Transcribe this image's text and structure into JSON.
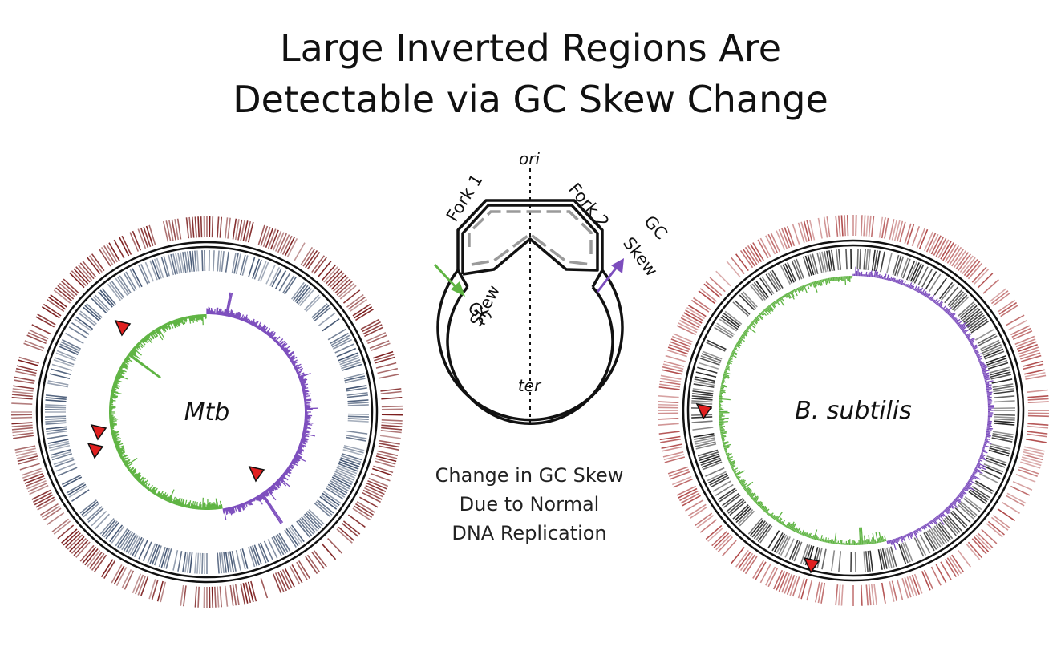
{
  "title": {
    "line1": "Large Inverted Regions Are",
    "line2": "Detectable via GC Skew Change"
  },
  "left_genome": {
    "label": "Mtb"
  },
  "right_genome": {
    "label": "B. subtilis"
  },
  "replication_diagram": {
    "ori_label": "ori",
    "ter_label": "ter",
    "fork1_label": "Fork 1",
    "fork2_label": "Fork 2",
    "gc_left_line1": "GC",
    "gc_left_line2": "Skew",
    "gc_right_line1": "GC",
    "gc_right_line2": "Skew"
  },
  "caption": {
    "line1": "Change in GC Skew",
    "line2": "Due to Normal",
    "line3": "DNA Replication"
  },
  "colors": {
    "positive_skew": "#7c4dbd",
    "negative_skew": "#5fb443",
    "mtb_outer_track": "#7a1c1c",
    "mtb_inner_track": "#3f5270",
    "bsub_outer_track": "#b04a4a",
    "bsub_inner_track": "#1e1e1e",
    "marker": "#e02020"
  }
}
